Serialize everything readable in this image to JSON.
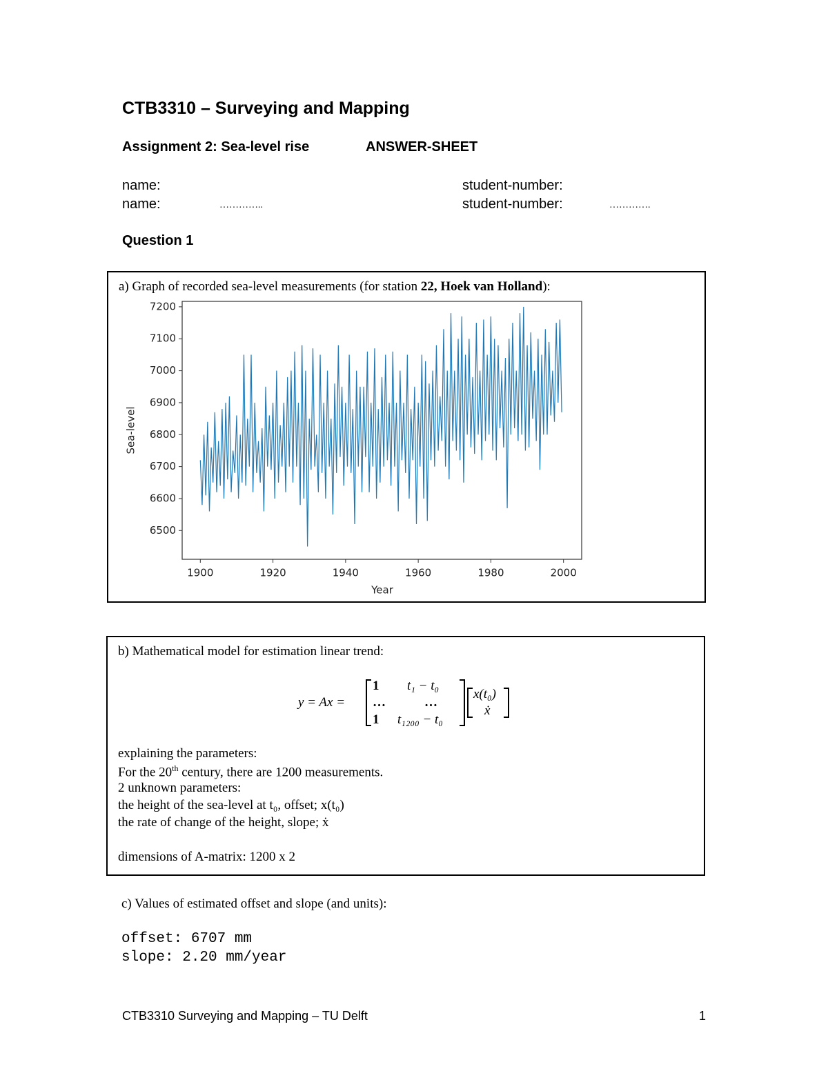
{
  "header": {
    "title": "CTB3310 – Surveying and Mapping",
    "assignment": "Assignment 2: Sea-level rise",
    "sheet": "ANSWER-SHEET"
  },
  "students": {
    "rows": [
      {
        "name_label": "name:",
        "number_label": "student-number:"
      },
      {
        "name_label": "name:",
        "name_value": "…………..",
        "number_label": "student-number:",
        "number_value": "…………."
      }
    ]
  },
  "question": "Question 1",
  "part_a": {
    "caption_pre": "a) Graph of recorded sea-level measurements (for station ",
    "caption_bold": "22, Hoek van Holland",
    "caption_post": "):"
  },
  "chart_data": {
    "type": "line",
    "xlabel": "Year",
    "ylabel": "Sea-level",
    "color": "#1f77b4",
    "xlim": [
      1895,
      2005
    ],
    "xticks": [
      1900,
      1920,
      1940,
      1960,
      1980,
      2000
    ],
    "ylim": [
      6410,
      7217
    ],
    "yticks": [
      6500,
      6600,
      6700,
      6800,
      6900,
      7000,
      7100,
      7200
    ],
    "x": [
      1900,
      1900.5,
      1901,
      1901.5,
      1902,
      1902.5,
      1903,
      1903.5,
      1904,
      1904.5,
      1905,
      1905.5,
      1906,
      1906.5,
      1907,
      1907.5,
      1908,
      1908.5,
      1909,
      1909.5,
      1910,
      1910.5,
      1911,
      1911.5,
      1912,
      1912.5,
      1913,
      1913.5,
      1914,
      1914.5,
      1915,
      1915.5,
      1916,
      1916.5,
      1917,
      1917.5,
      1918,
      1918.5,
      1919,
      1919.5,
      1920,
      1920.5,
      1921,
      1921.5,
      1922,
      1922.5,
      1923,
      1923.5,
      1924,
      1924.5,
      1925,
      1925.5,
      1926,
      1926.5,
      1927,
      1927.5,
      1928,
      1928.5,
      1929,
      1929.5,
      1930,
      1930.5,
      1931,
      1931.5,
      1932,
      1932.5,
      1933,
      1933.5,
      1934,
      1934.5,
      1935,
      1935.5,
      1936,
      1936.5,
      1937,
      1937.5,
      1938,
      1938.5,
      1939,
      1939.5,
      1940,
      1940.5,
      1941,
      1941.5,
      1942,
      1942.5,
      1943,
      1943.5,
      1944,
      1944.5,
      1945,
      1945.5,
      1946,
      1946.5,
      1947,
      1947.5,
      1948,
      1948.5,
      1949,
      1949.5,
      1950,
      1950.5,
      1951,
      1951.5,
      1952,
      1952.5,
      1953,
      1953.5,
      1954,
      1954.5,
      1955,
      1955.5,
      1956,
      1956.5,
      1957,
      1957.5,
      1958,
      1958.5,
      1959,
      1959.5,
      1960,
      1960.5,
      1961,
      1961.5,
      1962,
      1962.5,
      1963,
      1963.5,
      1964,
      1964.5,
      1965,
      1965.5,
      1966,
      1966.5,
      1967,
      1967.5,
      1968,
      1968.5,
      1969,
      1969.5,
      1970,
      1970.5,
      1971,
      1971.5,
      1972,
      1972.5,
      1973,
      1973.5,
      1974,
      1974.5,
      1975,
      1975.5,
      1976,
      1976.5,
      1977,
      1977.5,
      1978,
      1978.5,
      1979,
      1979.5,
      1980,
      1980.5,
      1981,
      1981.5,
      1982,
      1982.5,
      1983,
      1983.5,
      1984,
      1984.5,
      1985,
      1985.5,
      1986,
      1986.5,
      1987,
      1987.5,
      1988,
      1988.5,
      1989,
      1989.5,
      1990,
      1990.5,
      1991,
      1991.5,
      1992,
      1992.5,
      1993,
      1993.5,
      1994,
      1994.5,
      1995,
      1995.5,
      1996,
      1996.5,
      1997,
      1997.5,
      1998,
      1998.5,
      1999,
      1999.5
    ],
    "values": [
      6720,
      6580,
      6800,
      6610,
      6840,
      6560,
      6760,
      6650,
      6870,
      6620,
      6780,
      6640,
      6880,
      6600,
      6900,
      6660,
      6920,
      6620,
      6750,
      6680,
      6860,
      6600,
      6800,
      6650,
      7050,
      6640,
      6850,
      6700,
      7050,
      6620,
      6900,
      6680,
      6780,
      6650,
      6820,
      6560,
      6950,
      6700,
      6860,
      6690,
      6900,
      6600,
      7000,
      6650,
      6830,
      6700,
      6900,
      6620,
      6980,
      6700,
      7000,
      6650,
      7060,
      6700,
      6900,
      6580,
      7080,
      6600,
      7000,
      6450,
      6850,
      6690,
      7070,
      6700,
      6800,
      6620,
      7050,
      6680,
      6900,
      6600,
      7000,
      6700,
      6850,
      6550,
      6960,
      6680,
      7080,
      6730,
      6950,
      6640,
      6900,
      6700,
      7050,
      6680,
      6880,
      6520,
      7000,
      6700,
      6950,
      6620,
      6950,
      6730,
      7060,
      6620,
      6900,
      6700,
      7070,
      6600,
      6880,
      6650,
      6980,
      6700,
      7050,
      6720,
      6900,
      6640,
      7060,
      6700,
      6900,
      6560,
      7000,
      6720,
      6900,
      6680,
      7050,
      6600,
      6880,
      6720,
      6950,
      6520,
      6900,
      6700,
      7050,
      6600,
      7030,
      6530,
      6960,
      6720,
      7000,
      6700,
      7080,
      6750,
      6920,
      6780,
      7130,
      6700,
      7000,
      6660,
      7180,
      6780,
      7000,
      6750,
      7100,
      6720,
      7170,
      6650,
      7050,
      6800,
      7100,
      6760,
      6980,
      6740,
      7150,
      6800,
      7000,
      6720,
      7160,
      6780,
      7050,
      6800,
      7170,
      6750,
      7100,
      6720,
      7080,
      6820,
      7000,
      6760,
      7040,
      6570,
      7100,
      6800,
      7150,
      6820,
      7000,
      6780,
      7180,
      6800,
      7200,
      6750,
      7080,
      6760,
      7120,
      6850,
      7000,
      6780,
      7100,
      6690,
      7050,
      6800,
      7130,
      6800,
      7090,
      6860,
      7000,
      6840,
      7150,
      6900,
      7160,
      6870
    ]
  },
  "part_b": {
    "heading": "b) Mathematical model for estimation linear trend:",
    "formula": {
      "lhs": "y = Ax =",
      "matrix": [
        "1",
        "t₁ − t₀",
        "…",
        "…",
        "1",
        "t₁₂₀₀ − t₀"
      ],
      "vector": [
        "x(t₀)",
        "ẋ"
      ]
    },
    "explain": "explaining the parameters:",
    "century_pre": "For the 20",
    "century_sup": "th",
    "century_post": " century, there are 1200 measurements.",
    "unknowns": "2 unknown parameters:",
    "offset_line": "the height of the sea-level at t₀, offset; x(t₀)",
    "slope_line": "the rate of change of the height, slope; ẋ",
    "dimensions": "dimensions of A-matrix: 1200 x 2"
  },
  "part_c": {
    "heading": "c) Values of estimated offset and slope (and units):",
    "lines": [
      "offset: 6707 mm",
      "slope: 2.20 mm/year"
    ]
  },
  "footer": {
    "text": "CTB3310 Surveying and Mapping – TU Delft",
    "page": 1
  }
}
